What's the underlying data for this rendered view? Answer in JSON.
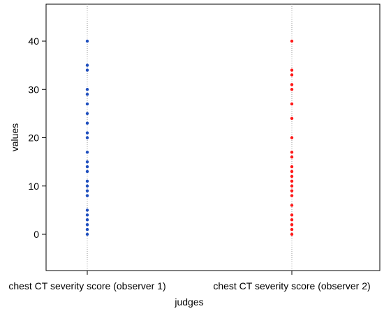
{
  "chart_data": {
    "type": "scatter",
    "title": "",
    "xlabel": "judges",
    "ylabel": "values",
    "categories": [
      "chest CT severity score (observer 1)",
      "chest CT severity score (observer 2)"
    ],
    "yticks": [
      0,
      10,
      20,
      30,
      40
    ],
    "ylim": [
      -7,
      46
    ],
    "grid": "vertical dotted lines at categories",
    "legend": "none",
    "series": [
      {
        "color": "#1f4fbf",
        "values": [
          0,
          1,
          2,
          3,
          4,
          5,
          8,
          9,
          10,
          11,
          13,
          14,
          15,
          17,
          20,
          21,
          23,
          25,
          27,
          29,
          30,
          34,
          35,
          40
        ]
      },
      {
        "color": "#ff1a1a",
        "values": [
          0,
          1,
          2,
          3,
          4,
          6,
          8,
          9,
          10,
          11,
          12,
          13,
          14,
          16,
          17,
          20,
          24,
          27,
          30,
          31,
          33,
          34,
          40
        ]
      }
    ]
  }
}
